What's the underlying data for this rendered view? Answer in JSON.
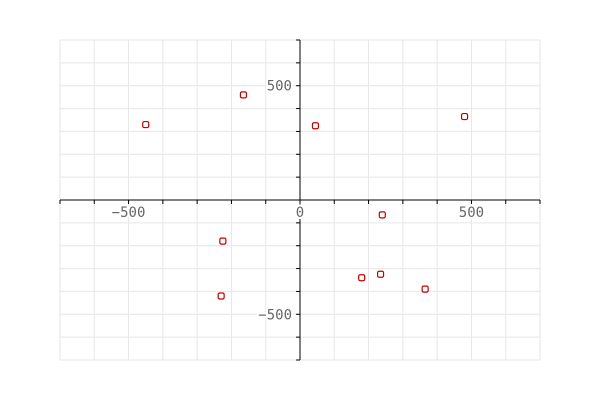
{
  "chart_data": {
    "type": "scatter",
    "title": "",
    "xlabel": "",
    "ylabel": "",
    "xlim": [
      -700,
      700
    ],
    "ylim": [
      -700,
      700
    ],
    "grid": true,
    "grid_step": 100,
    "x_ticks": [
      {
        "value": -500,
        "label": "−500"
      },
      {
        "value": 0,
        "label": "0"
      },
      {
        "value": 500,
        "label": "500"
      }
    ],
    "y_ticks": [
      {
        "value": 500,
        "label": "500"
      },
      {
        "value": -500,
        "label": "−500"
      }
    ],
    "marker_color": "#c00000",
    "grid_color": "#e6e6e6",
    "points": [
      {
        "x": -450,
        "y": 330
      },
      {
        "x": -165,
        "y": 460
      },
      {
        "x": 45,
        "y": 325
      },
      {
        "x": 480,
        "y": 365
      },
      {
        "x": 240,
        "y": -65
      },
      {
        "x": -225,
        "y": -180
      },
      {
        "x": -230,
        "y": -420
      },
      {
        "x": 180,
        "y": -340
      },
      {
        "x": 235,
        "y": -325
      },
      {
        "x": 365,
        "y": -390
      }
    ]
  }
}
